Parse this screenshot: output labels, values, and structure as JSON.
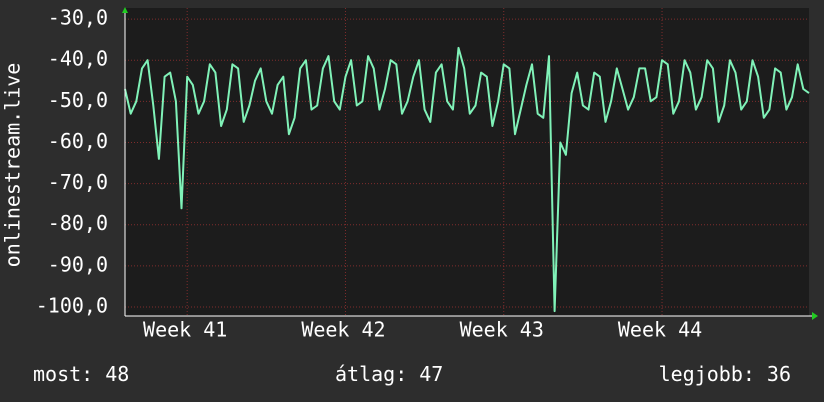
{
  "chart_data": {
    "type": "line",
    "ylabel": "onlinestream.live",
    "categories": [
      null,
      null,
      null,
      null,
      null,
      null,
      null,
      null,
      null,
      null,
      null,
      "Week 41",
      null,
      null,
      null,
      null,
      null,
      null,
      null,
      null,
      null,
      null,
      null,
      null,
      null,
      null,
      null,
      null,
      null,
      null,
      null,
      null,
      null,
      null,
      null,
      null,
      null,
      null,
      null,
      "Week 42",
      null,
      null,
      null,
      null,
      null,
      null,
      null,
      null,
      null,
      null,
      null,
      null,
      null,
      null,
      null,
      null,
      null,
      null,
      null,
      null,
      null,
      null,
      null,
      null,
      null,
      null,
      null,
      "Week 43",
      null,
      null,
      null,
      null,
      null,
      null,
      null,
      null,
      null,
      null,
      null,
      null,
      null,
      null,
      null,
      null,
      null,
      null,
      null,
      null,
      null,
      null,
      null,
      null,
      null,
      null,
      null,
      "Week 44",
      null,
      null,
      null,
      null,
      null,
      null,
      null,
      null,
      null,
      null,
      null,
      null,
      null,
      null,
      null,
      null,
      null,
      null,
      null,
      null,
      null,
      null,
      null,
      null,
      null,
      null
    ],
    "series": [
      {
        "color": "#80f2b8",
        "values": [
          -47,
          -53,
          -50,
          -42,
          -40,
          -51,
          -64,
          -44,
          -43,
          -50,
          -76,
          -44,
          -46,
          -53,
          -50,
          -41,
          -43,
          -56,
          -52,
          -41,
          -42,
          -55,
          -51,
          -45,
          -42,
          -50,
          -53,
          -46,
          -44,
          -58,
          -54,
          -42,
          -40,
          -52,
          -51,
          -42,
          -39,
          -50,
          -52,
          -44,
          -40,
          -51,
          -50,
          -39,
          -42,
          -52,
          -47,
          -40,
          -41,
          -53,
          -50,
          -44,
          -40,
          -52,
          -55,
          -43,
          -41,
          -50,
          -52,
          -37,
          -42,
          -53,
          -51,
          -43,
          -44,
          -56,
          -50,
          -41,
          -42,
          -58,
          -52,
          -46,
          -41,
          -53,
          -54,
          -39,
          -101,
          -60,
          -63,
          -48,
          -43,
          -51,
          -52,
          -43,
          -44,
          -55,
          -50,
          -42,
          -47,
          -52,
          -49,
          -42,
          -42,
          -50,
          -49,
          -40,
          -41,
          -53,
          -50,
          -40,
          -43,
          -52,
          -49,
          -40,
          -42,
          -55,
          -51,
          -40,
          -43,
          -52,
          -50,
          -40,
          -44,
          -54,
          -52,
          -42,
          -43,
          -52,
          -49,
          -41,
          -47,
          -48
        ]
      }
    ],
    "ylim": [
      -102.2,
      -27.3
    ],
    "yticks": [
      {
        "value": -30,
        "label": "-30,0"
      },
      {
        "value": -40,
        "label": "-40,0"
      },
      {
        "value": -50,
        "label": "-50,0"
      },
      {
        "value": -60,
        "label": "-60,0"
      },
      {
        "value": -70,
        "label": "-70,0"
      },
      {
        "value": -80,
        "label": "-80,0"
      },
      {
        "value": -90,
        "label": "-90,0"
      },
      {
        "value": -100,
        "label": "-100,0"
      }
    ],
    "grid": true,
    "footer": [
      {
        "label": "most:",
        "value": 48
      },
      {
        "label": "átlag:",
        "value": 47
      },
      {
        "label": "legjobb:",
        "value": 36
      }
    ]
  }
}
